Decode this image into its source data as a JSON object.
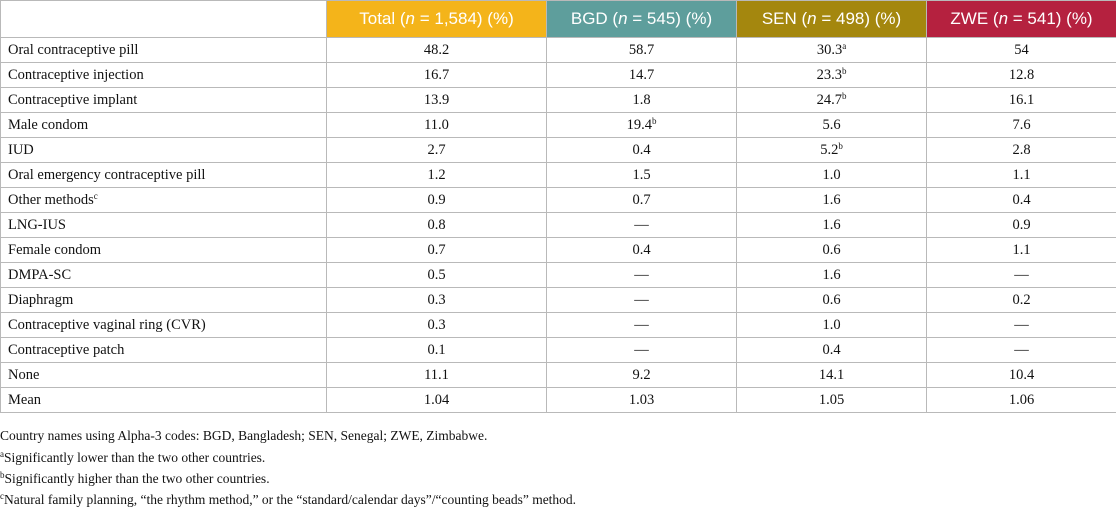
{
  "table": {
    "columns": [
      {
        "id": "total",
        "label_pre": "Total (",
        "n_symbol": "n",
        "label_post": " = 1,584) (%)",
        "color": "#F4B41A"
      },
      {
        "id": "bgd",
        "label_pre": "BGD (",
        "n_symbol": "n",
        "label_post": " = 545) (%)",
        "color": "#5E9E9C"
      },
      {
        "id": "sen",
        "label_pre": "SEN (",
        "n_symbol": "n",
        "label_post": " = 498) (%)",
        "color": "#A4870E"
      },
      {
        "id": "zwe",
        "label_pre": "ZWE (",
        "n_symbol": "n",
        "label_post": " = 541) (%)",
        "color": "#B5213F"
      }
    ],
    "rows": [
      {
        "label": "Oral contraceptive pill",
        "label_sup": "",
        "cells": [
          {
            "v": "48.2",
            "s": ""
          },
          {
            "v": "58.7",
            "s": ""
          },
          {
            "v": "30.3",
            "s": "a"
          },
          {
            "v": "54",
            "s": ""
          }
        ]
      },
      {
        "label": "Contraceptive injection",
        "label_sup": "",
        "cells": [
          {
            "v": "16.7",
            "s": ""
          },
          {
            "v": "14.7",
            "s": ""
          },
          {
            "v": "23.3",
            "s": "b"
          },
          {
            "v": "12.8",
            "s": ""
          }
        ]
      },
      {
        "label": "Contraceptive implant",
        "label_sup": "",
        "cells": [
          {
            "v": "13.9",
            "s": ""
          },
          {
            "v": "1.8",
            "s": ""
          },
          {
            "v": "24.7",
            "s": "b"
          },
          {
            "v": "16.1",
            "s": ""
          }
        ]
      },
      {
        "label": "Male condom",
        "label_sup": "",
        "cells": [
          {
            "v": "11.0",
            "s": ""
          },
          {
            "v": "19.4",
            "s": "b"
          },
          {
            "v": "5.6",
            "s": ""
          },
          {
            "v": "7.6",
            "s": ""
          }
        ]
      },
      {
        "label": "IUD",
        "label_sup": "",
        "cells": [
          {
            "v": "2.7",
            "s": ""
          },
          {
            "v": "0.4",
            "s": ""
          },
          {
            "v": "5.2",
            "s": "b"
          },
          {
            "v": "2.8",
            "s": ""
          }
        ]
      },
      {
        "label": "Oral emergency contraceptive pill",
        "label_sup": "",
        "cells": [
          {
            "v": "1.2",
            "s": ""
          },
          {
            "v": "1.5",
            "s": ""
          },
          {
            "v": "1.0",
            "s": ""
          },
          {
            "v": "1.1",
            "s": ""
          }
        ]
      },
      {
        "label": "Other methods",
        "label_sup": "c",
        "cells": [
          {
            "v": "0.9",
            "s": ""
          },
          {
            "v": "0.7",
            "s": ""
          },
          {
            "v": "1.6",
            "s": ""
          },
          {
            "v": "0.4",
            "s": ""
          }
        ]
      },
      {
        "label": "LNG-IUS",
        "label_sup": "",
        "cells": [
          {
            "v": "0.8",
            "s": ""
          },
          {
            "v": "—",
            "s": ""
          },
          {
            "v": "1.6",
            "s": ""
          },
          {
            "v": "0.9",
            "s": ""
          }
        ]
      },
      {
        "label": "Female condom",
        "label_sup": "",
        "cells": [
          {
            "v": "0.7",
            "s": ""
          },
          {
            "v": "0.4",
            "s": ""
          },
          {
            "v": "0.6",
            "s": ""
          },
          {
            "v": "1.1",
            "s": ""
          }
        ]
      },
      {
        "label": "DMPA-SC",
        "label_sup": "",
        "cells": [
          {
            "v": "0.5",
            "s": ""
          },
          {
            "v": "—",
            "s": ""
          },
          {
            "v": "1.6",
            "s": ""
          },
          {
            "v": "—",
            "s": ""
          }
        ]
      },
      {
        "label": "Diaphragm",
        "label_sup": "",
        "cells": [
          {
            "v": "0.3",
            "s": ""
          },
          {
            "v": "—",
            "s": ""
          },
          {
            "v": "0.6",
            "s": ""
          },
          {
            "v": "0.2",
            "s": ""
          }
        ]
      },
      {
        "label": "Contraceptive vaginal ring (CVR)",
        "label_sup": "",
        "cells": [
          {
            "v": "0.3",
            "s": ""
          },
          {
            "v": "—",
            "s": ""
          },
          {
            "v": "1.0",
            "s": ""
          },
          {
            "v": "—",
            "s": ""
          }
        ]
      },
      {
        "label": "Contraceptive patch",
        "label_sup": "",
        "cells": [
          {
            "v": "0.1",
            "s": ""
          },
          {
            "v": "—",
            "s": ""
          },
          {
            "v": "0.4",
            "s": ""
          },
          {
            "v": "—",
            "s": ""
          }
        ]
      },
      {
        "label": "None",
        "label_sup": "",
        "cells": [
          {
            "v": "11.1",
            "s": ""
          },
          {
            "v": "9.2",
            "s": ""
          },
          {
            "v": "14.1",
            "s": ""
          },
          {
            "v": "10.4",
            "s": ""
          }
        ]
      },
      {
        "label": "Mean",
        "label_sup": "",
        "cells": [
          {
            "v": "1.04",
            "s": ""
          },
          {
            "v": "1.03",
            "s": ""
          },
          {
            "v": "1.05",
            "s": ""
          },
          {
            "v": "1.06",
            "s": ""
          }
        ]
      }
    ]
  },
  "notes": {
    "country_codes": "Country names using Alpha-3 codes: BGD, Bangladesh; SEN, Senegal; ZWE, Zimbabwe.",
    "a": {
      "mark": "a",
      "text": "Significantly lower than the two other countries."
    },
    "b": {
      "mark": "b",
      "text": "Significantly higher than the two other countries."
    },
    "c": {
      "mark": "c",
      "text": "Natural family planning, “the rhythm method,” or the “standard/calendar days”/“counting beads” method."
    }
  }
}
